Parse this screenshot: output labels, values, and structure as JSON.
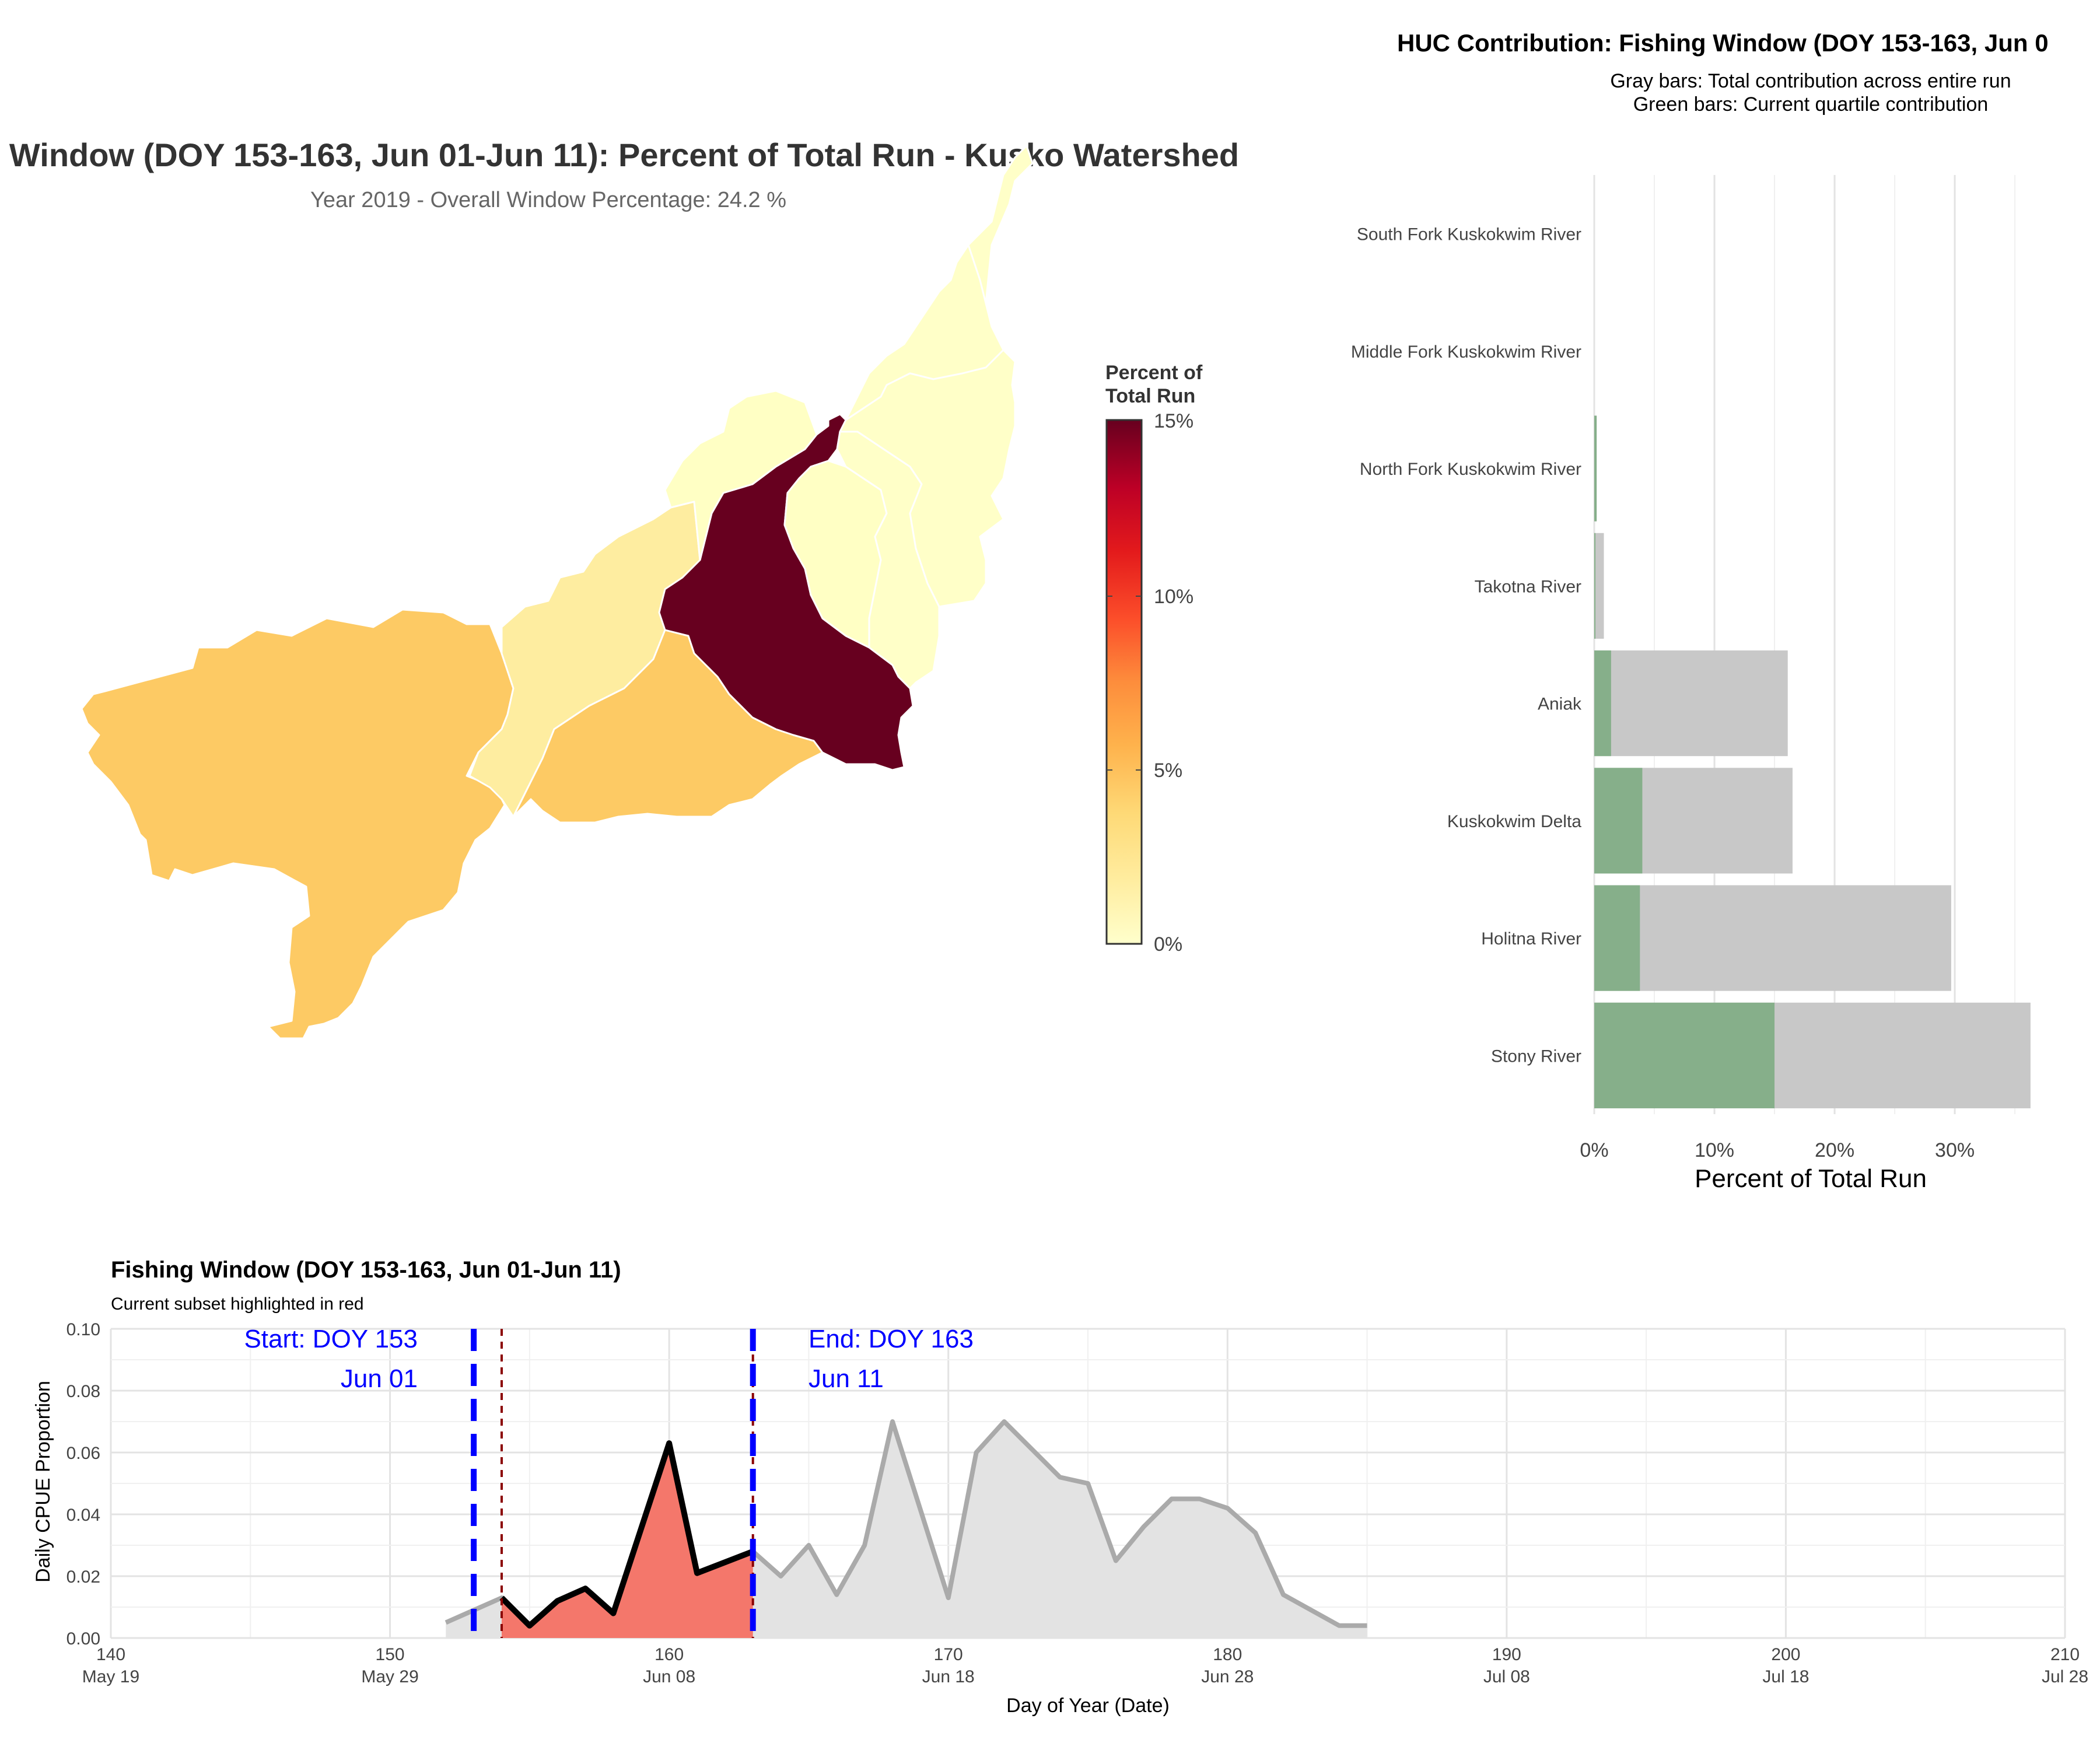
{
  "map_panel": {
    "title": "Window (DOY 153-163, Jun 01-Jun 11): Percent of Total Run - Kusko Watershed",
    "subtitle": "Year 2019 - Overall Window Percentage: 24.2 %",
    "legend": {
      "title_line1": "Percent of",
      "title_line2": "Total Run",
      "ticks": [
        "15%",
        "10%",
        "5%",
        "0%"
      ],
      "colors": [
        "#ffffcc",
        "#ffeda0",
        "#fed976",
        "#feb24c",
        "#fd8d3c",
        "#fc4e2a",
        "#e31a1c",
        "#bd0026",
        "#67001f"
      ]
    },
    "regions": [
      {
        "name": "Kuskokwim Delta",
        "percent": 4.0,
        "color": "#fdca64"
      },
      {
        "name": "Aniak",
        "percent": 1.4,
        "color": "#feeda0"
      },
      {
        "name": "Holitna River",
        "percent": 3.8,
        "color": "#fdca64"
      },
      {
        "name": "Stony River",
        "percent": 15.0,
        "color": "#67001f"
      },
      {
        "name": "Takotna River",
        "percent": 0.1,
        "color": "#ffffc4"
      },
      {
        "name": "North Fork Kuskokwim River",
        "percent": 0.2,
        "color": "#ffffc4"
      },
      {
        "name": "Middle Fork Kuskokwim River",
        "percent": 0.0,
        "color": "#ffffc8"
      },
      {
        "name": "South Fork Kuskokwim River",
        "percent": 0.0,
        "color": "#ffffc8"
      }
    ]
  },
  "bar_panel": {
    "title": "HUC Contribution: Fishing Window (DOY 153-163, Jun 0",
    "subtitle_line1": "Gray bars: Total contribution across entire run",
    "subtitle_line2": "Green bars: Current quartile contribution",
    "x_label": "Percent of Total Run",
    "x_ticks": [
      "0%",
      "10%",
      "20%",
      "30%"
    ],
    "colors": {
      "total": "#c8c8c8",
      "current": "#86af8a"
    }
  },
  "line_panel": {
    "title": "Fishing Window (DOY 153-163, Jun 01-Jun 11)",
    "subtitle": "Current subset highlighted in red",
    "y_label": "Daily CPUE Proportion",
    "x_label": "Day of Year (Date)",
    "y_ticks": [
      "0.10",
      "0.08",
      "0.06",
      "0.04",
      "0.02",
      "0.00"
    ],
    "x_ticks": [
      {
        "doy": "140",
        "date": "May 19"
      },
      {
        "doy": "150",
        "date": "May 29"
      },
      {
        "doy": "160",
        "date": "Jun 08"
      },
      {
        "doy": "170",
        "date": "Jun 18"
      },
      {
        "doy": "180",
        "date": "Jun 28"
      },
      {
        "doy": "190",
        "date": "Jul 08"
      },
      {
        "doy": "200",
        "date": "Jul 18"
      },
      {
        "doy": "210",
        "date": "Jul 28"
      }
    ],
    "start_label": "Start: DOY 153",
    "start_date": "Jun 01",
    "end_label": "End: DOY 163",
    "end_date": "Jun 11",
    "colors": {
      "window_line": "#0000ff",
      "highlight_fill": "#f4776b",
      "subset_line": "#8b0000",
      "run_fill": "#e3e3e3",
      "run_line": "#aaaaaa"
    }
  },
  "chart_data": [
    {
      "type": "bar",
      "title": "HUC Contribution: Fishing Window (DOY 153-163, Jun 0",
      "xlabel": "Percent of Total Run",
      "orientation": "horizontal",
      "categories": [
        "South Fork Kuskokwim River",
        "Middle Fork Kuskokwim River",
        "North Fork Kuskokwim River",
        "Takotna River",
        "Aniak",
        "Kuskokwim Delta",
        "Holitna River",
        "Stony River"
      ],
      "series": [
        {
          "name": "Total contribution across entire run",
          "values": [
            0.0,
            0.0,
            0.2,
            0.8,
            16.1,
            16.5,
            29.7,
            36.3
          ]
        },
        {
          "name": "Current quartile contribution",
          "values": [
            0.0,
            0.0,
            0.2,
            0.1,
            1.4,
            4.0,
            3.8,
            15.0
          ]
        }
      ],
      "xlim": [
        0,
        36.5
      ]
    },
    {
      "type": "area",
      "title": "Fishing Window (DOY 153-163, Jun 01-Jun 11)",
      "xlabel": "Day of Year (Date)",
      "ylabel": "Daily CPUE Proportion",
      "xlim": [
        140,
        210
      ],
      "ylim": [
        0,
        0.1
      ],
      "series": [
        {
          "x": [
            152,
            153,
            154,
            155,
            156,
            157,
            158,
            160,
            161,
            163,
            164,
            165,
            166,
            167,
            168,
            170,
            171,
            172,
            174,
            175,
            176,
            177,
            178,
            179,
            180,
            181,
            182,
            184,
            185
          ],
          "values": [
            0.005,
            0.009,
            0.013,
            0.004,
            0.012,
            0.016,
            0.008,
            0.063,
            0.021,
            0.028,
            0.02,
            0.03,
            0.014,
            0.03,
            0.07,
            0.013,
            0.06,
            0.07,
            0.052,
            0.05,
            0.025,
            0.036,
            0.045,
            0.045,
            0.042,
            0.034,
            0.014,
            0.004,
            0.004
          ]
        },
        {
          "name": "Current subset",
          "x": [
            154,
            155,
            156,
            157,
            158,
            160,
            161,
            163
          ],
          "values": [
            0.013,
            0.004,
            0.012,
            0.016,
            0.008,
            0.063,
            0.021,
            0.028
          ]
        }
      ],
      "window": {
        "start": 153,
        "end": 163
      }
    }
  ]
}
